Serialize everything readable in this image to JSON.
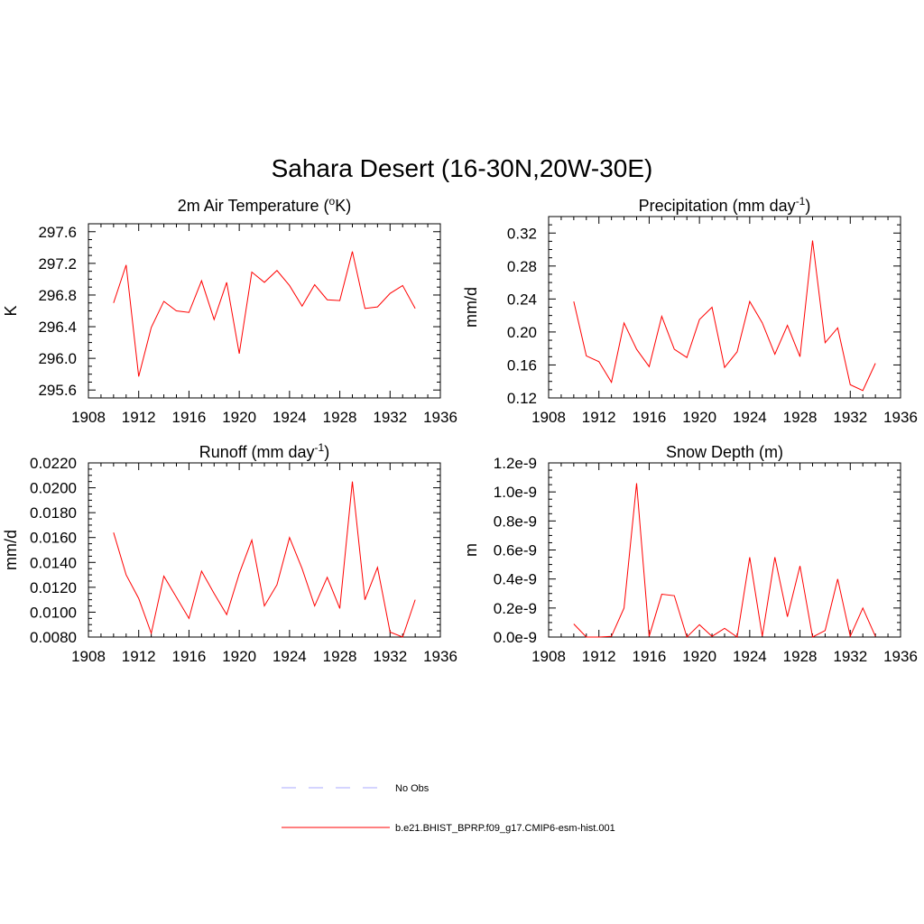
{
  "main_title": "Sahara Desert (16-30N,20W-30E)",
  "chart_data": [
    {
      "type": "line",
      "title": "2m Air Temperature (",
      "title_sup": "o",
      "title_after": "K)",
      "ylabel": "K",
      "xlim": [
        1908,
        1936
      ],
      "ylim": [
        295.5,
        297.7
      ],
      "x_ticks": [
        "1908",
        "1912",
        "1916",
        "1920",
        "1924",
        "1928",
        "1932",
        "1936"
      ],
      "y_ticks": [
        295.6,
        296.0,
        296.4,
        296.8,
        297.2,
        297.6
      ],
      "y_tick_labels": [
        "295.6",
        "296.0",
        "296.4",
        "296.8",
        "297.2",
        "297.6"
      ],
      "x": [
        1910,
        1911,
        1912,
        1913,
        1914,
        1915,
        1916,
        1917,
        1918,
        1919,
        1920,
        1921,
        1922,
        1923,
        1924,
        1925,
        1926,
        1927,
        1928,
        1929,
        1930,
        1931,
        1932,
        1933,
        1934
      ],
      "series": [
        {
          "name": "b.e21.BHIST_BPRP.f09_g17.CMIP6-esm-hist.001",
          "values": [
            296.7,
            297.18,
            295.77,
            296.39,
            296.72,
            296.6,
            296.58,
            296.98,
            296.49,
            296.96,
            296.06,
            297.09,
            296.96,
            297.11,
            296.92,
            296.66,
            296.93,
            296.74,
            296.73,
            297.35,
            296.63,
            296.65,
            296.82,
            296.92,
            296.63
          ]
        }
      ]
    },
    {
      "type": "line",
      "title": "Precipitation (mm day",
      "title_sup": "-1",
      "title_after": ")",
      "ylabel": "mm/d",
      "xlim": [
        1908,
        1936
      ],
      "ylim": [
        0.12,
        0.34
      ],
      "x_ticks": [
        "1908",
        "1912",
        "1916",
        "1920",
        "1924",
        "1928",
        "1932",
        "1936"
      ],
      "y_ticks": [
        0.12,
        0.16,
        0.2,
        0.24,
        0.28,
        0.32
      ],
      "y_tick_labels": [
        "0.12",
        "0.16",
        "0.20",
        "0.24",
        "0.28",
        "0.32"
      ],
      "x": [
        1910,
        1911,
        1912,
        1913,
        1914,
        1915,
        1916,
        1917,
        1918,
        1919,
        1920,
        1921,
        1922,
        1923,
        1924,
        1925,
        1926,
        1927,
        1928,
        1929,
        1930,
        1931,
        1932,
        1933,
        1934
      ],
      "series": [
        {
          "name": "b.e21.BHIST_BPRP.f09_g17.CMIP6-esm-hist.001",
          "values": [
            0.237,
            0.171,
            0.164,
            0.139,
            0.211,
            0.179,
            0.158,
            0.219,
            0.179,
            0.169,
            0.215,
            0.23,
            0.157,
            0.176,
            0.237,
            0.211,
            0.173,
            0.208,
            0.17,
            0.311,
            0.187,
            0.205,
            0.136,
            0.129,
            0.162
          ]
        }
      ]
    },
    {
      "type": "line",
      "title": "Runoff (mm day",
      "title_sup": "-1",
      "title_after": ")",
      "ylabel": "mm/d",
      "xlim": [
        1908,
        1936
      ],
      "ylim": [
        0.008,
        0.022
      ],
      "x_ticks": [
        "1908",
        "1912",
        "1916",
        "1920",
        "1924",
        "1928",
        "1932",
        "1936"
      ],
      "y_ticks": [
        0.008,
        0.01,
        0.012,
        0.014,
        0.016,
        0.018,
        0.02,
        0.022
      ],
      "y_tick_labels": [
        "0.0080",
        "0.0100",
        "0.0120",
        "0.0140",
        "0.0160",
        "0.0180",
        "0.0200",
        "0.0220"
      ],
      "x": [
        1910,
        1911,
        1912,
        1913,
        1914,
        1915,
        1916,
        1917,
        1918,
        1919,
        1920,
        1921,
        1922,
        1923,
        1924,
        1925,
        1926,
        1927,
        1928,
        1929,
        1930,
        1931,
        1932,
        1933,
        1934
      ],
      "series": [
        {
          "name": "b.e21.BHIST_BPRP.f09_g17.CMIP6-esm-hist.001",
          "values": [
            0.0164,
            0.013,
            0.0111,
            0.0083,
            0.0129,
            0.0112,
            0.0095,
            0.0133,
            0.0115,
            0.0098,
            0.0131,
            0.0158,
            0.0105,
            0.0122,
            0.016,
            0.0135,
            0.0105,
            0.0128,
            0.0103,
            0.0205,
            0.011,
            0.0136,
            0.0084,
            0.008,
            0.011
          ]
        }
      ]
    },
    {
      "type": "line",
      "title": "Snow Depth (m)",
      "title_sup": "",
      "title_after": "",
      "ylabel": "m",
      "xlim": [
        1908,
        1936
      ],
      "ylim": [
        0,
        1.2e-09
      ],
      "x_ticks": [
        "1908",
        "1912",
        "1916",
        "1920",
        "1924",
        "1928",
        "1932",
        "1936"
      ],
      "y_ticks": [
        0,
        2e-10,
        4e-10,
        6e-10,
        8e-10,
        1e-09,
        1.2e-09
      ],
      "y_tick_labels": [
        "0.0e-9",
        "0.2e-9",
        "0.4e-9",
        "0.6e-9",
        "0.8e-9",
        "1.0e-9",
        "1.2e-9"
      ],
      "x": [
        1910,
        1911,
        1912,
        1913,
        1914,
        1915,
        1916,
        1917,
        1918,
        1919,
        1920,
        1921,
        1922,
        1923,
        1924,
        1925,
        1926,
        1927,
        1928,
        1929,
        1930,
        1931,
        1932,
        1933,
        1934
      ],
      "series": [
        {
          "name": "b.e21.BHIST_BPRP.f09_g17.CMIP6-esm-hist.001",
          "values": [
            9e-11,
            0,
            0,
            5e-12,
            2e-10,
            1.06e-09,
            5e-12,
            2.95e-10,
            2.85e-10,
            0,
            8.5e-11,
            5e-12,
            6e-11,
            0,
            5.5e-10,
            5e-12,
            5.5e-10,
            1.4e-10,
            4.9e-10,
            0,
            4.5e-11,
            4e-10,
            5e-12,
            2e-10,
            5e-12
          ]
        }
      ]
    }
  ],
  "legend": {
    "items": [
      {
        "label": "No Obs",
        "color": "#aaaaff",
        "dash": true
      },
      {
        "label": "b.e21.BHIST_BPRP.f09_g17.CMIP6-esm-hist.001",
        "color": "#ff0000",
        "dash": false
      }
    ]
  },
  "colors": {
    "line": "#ff0000",
    "axis": "#000000"
  }
}
